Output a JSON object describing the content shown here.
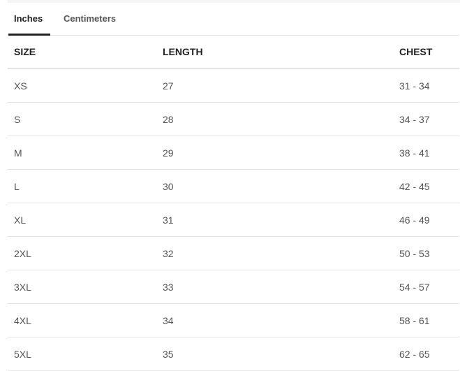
{
  "tabs": [
    {
      "label": "Inches",
      "active": true
    },
    {
      "label": "Centimeters",
      "active": false
    }
  ],
  "table": {
    "headers": [
      "SIZE",
      "LENGTH",
      "CHEST"
    ],
    "rows": [
      [
        "XS",
        "27",
        "31 - 34"
      ],
      [
        "S",
        "28",
        "34 - 37"
      ],
      [
        "M",
        "29",
        "38 - 41"
      ],
      [
        "L",
        "30",
        "42 - 45"
      ],
      [
        "XL",
        "31",
        "46 - 49"
      ],
      [
        "2XL",
        "32",
        "50 - 53"
      ],
      [
        "3XL",
        "33",
        "54 - 57"
      ],
      [
        "4XL",
        "34",
        "58 - 61"
      ],
      [
        "5XL",
        "35",
        "62 - 65"
      ]
    ]
  }
}
